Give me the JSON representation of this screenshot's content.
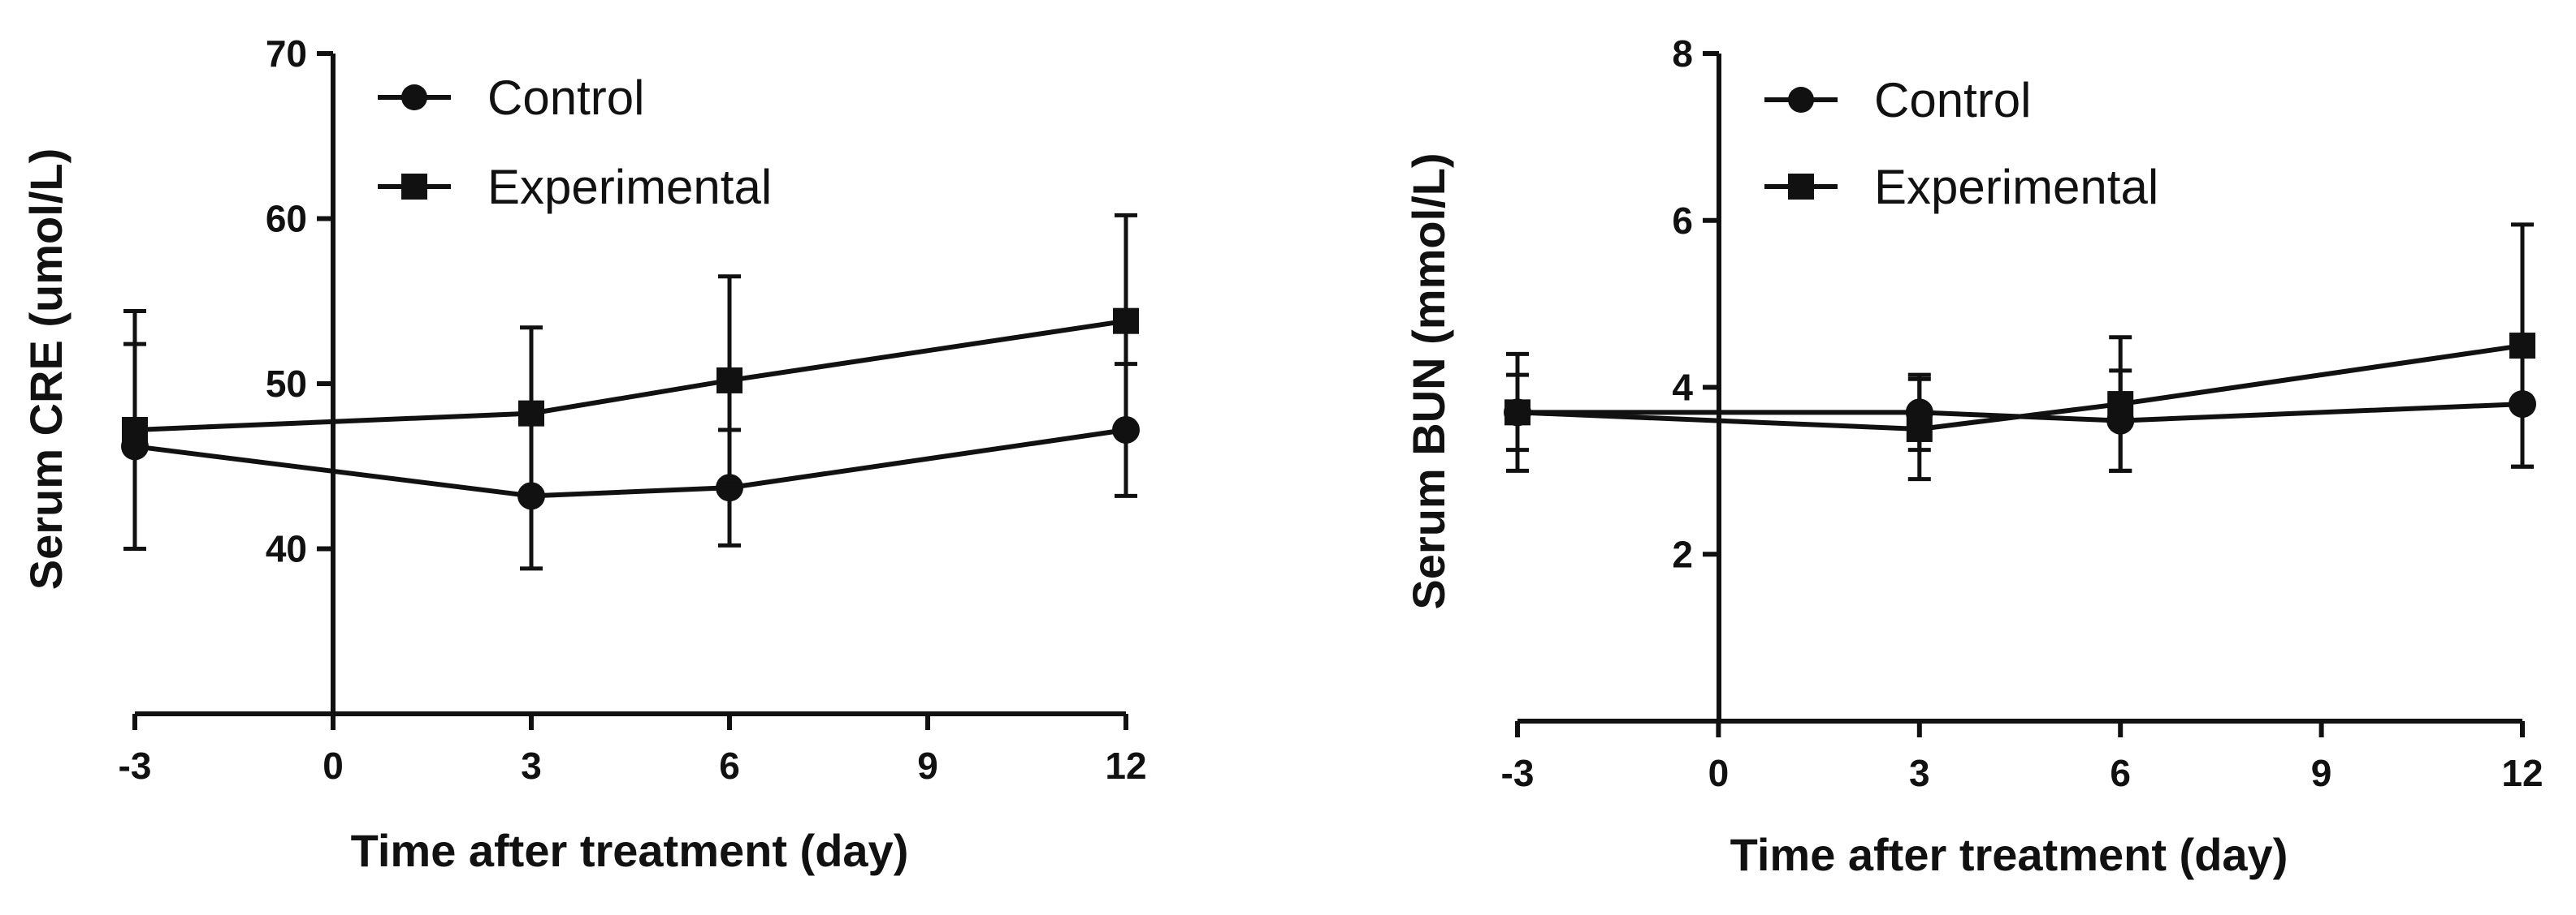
{
  "chart_data": [
    {
      "type": "line",
      "title": "",
      "xlabel": "Time after treatment (day)",
      "ylabel": "Serum CRE (umol/L)",
      "xlim": [
        -3,
        12
      ],
      "ylim": [
        30,
        70
      ],
      "xticks": [
        "-3",
        "0",
        "3",
        "6",
        "9",
        "12"
      ],
      "yticks": [
        "40",
        "50",
        "60",
        "70"
      ],
      "legend": "top-left",
      "series": [
        {
          "name": "Control",
          "marker": "circle",
          "x": [
            -3,
            3,
            6,
            12
          ],
          "values": [
            46.2,
            43.2,
            43.7,
            47.2
          ],
          "err": [
            6.2,
            4.4,
            3.5,
            4.0
          ]
        },
        {
          "name": "Experimental",
          "marker": "square",
          "x": [
            -3,
            3,
            6,
            12
          ],
          "values": [
            47.2,
            48.2,
            50.2,
            53.8
          ],
          "err": [
            7.2,
            5.2,
            6.3,
            6.4
          ]
        }
      ]
    },
    {
      "type": "line",
      "title": "",
      "xlabel": "Time after treatment (day)",
      "ylabel": "Serum BUN (mmol/L)",
      "xlim": [
        -3,
        12
      ],
      "ylim": [
        0,
        8
      ],
      "xticks": [
        "-3",
        "0",
        "3",
        "6",
        "9",
        "12"
      ],
      "yticks": [
        "2",
        "4",
        "6",
        "8"
      ],
      "legend": "top-left",
      "series": [
        {
          "name": "Control",
          "marker": "circle",
          "x": [
            -3,
            3,
            6,
            12
          ],
          "values": [
            3.7,
            3.7,
            3.6,
            3.8
          ],
          "err": [
            0.45,
            0.45,
            0.6,
            0.75
          ]
        },
        {
          "name": "Experimental",
          "marker": "square",
          "x": [
            -3,
            3,
            6,
            12
          ],
          "values": [
            3.7,
            3.5,
            3.8,
            4.5
          ],
          "err": [
            0.7,
            0.6,
            0.8,
            1.45
          ]
        }
      ]
    }
  ]
}
